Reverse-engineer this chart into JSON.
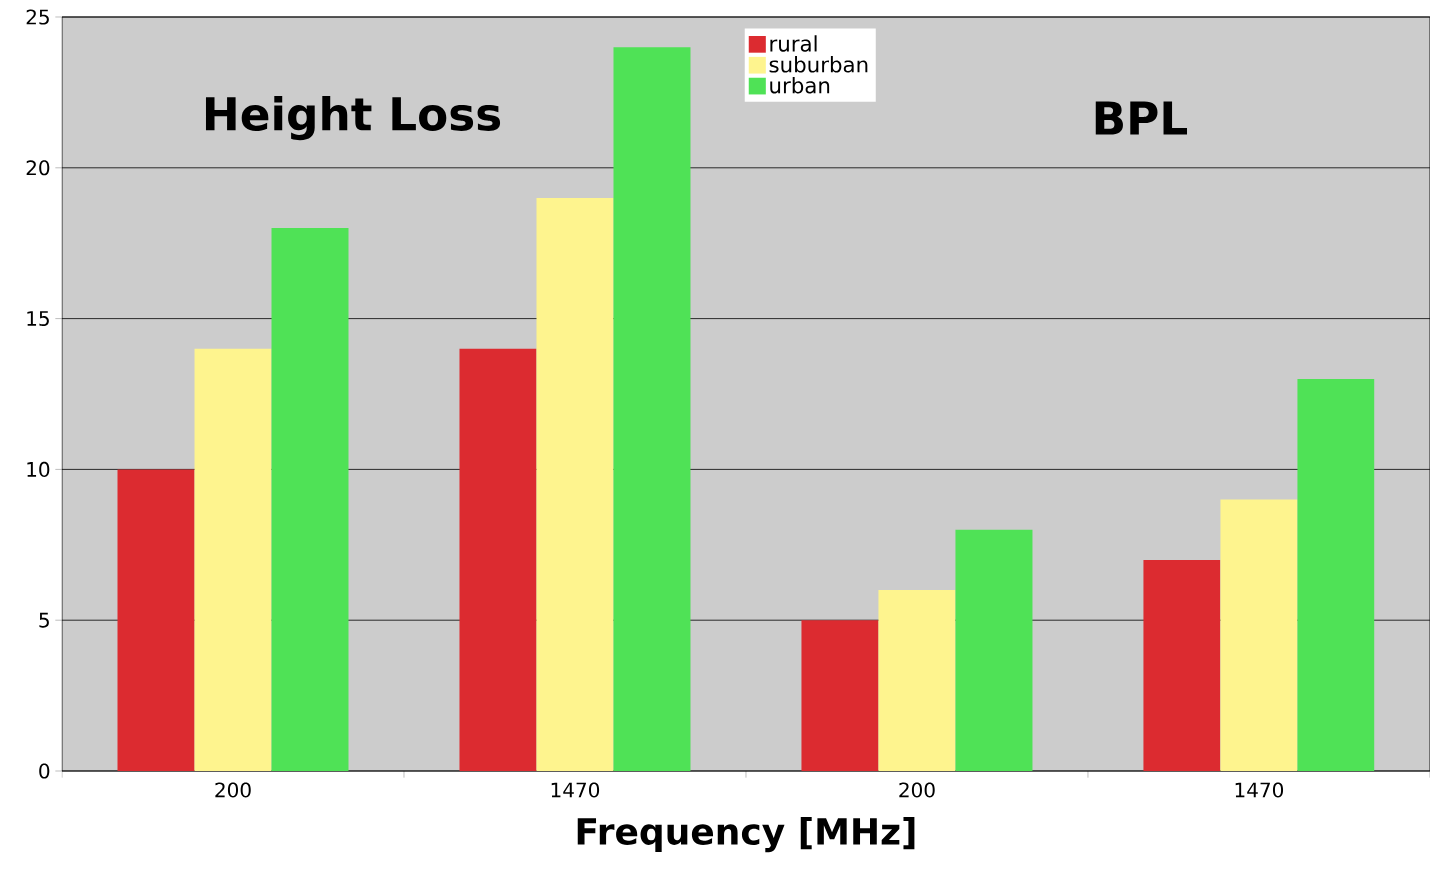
{
  "chart_data": {
    "type": "bar",
    "xlabel": "Frequency [MHz]",
    "categories": [
      "200",
      "1470",
      "200",
      "1470"
    ],
    "series": [
      {
        "name": "rural",
        "color": "#dc2b30",
        "values": [
          10,
          14,
          5,
          7
        ]
      },
      {
        "name": "suburban",
        "color": "#fef48e",
        "values": [
          14,
          19,
          6,
          9
        ]
      },
      {
        "name": "urban",
        "color": "#4fe256",
        "values": [
          18,
          24,
          8,
          13
        ]
      }
    ],
    "ylim": [
      0,
      25
    ],
    "yticks": [
      0,
      5,
      10,
      15,
      20,
      25
    ],
    "grid": "y",
    "legend": "top",
    "annotations": [
      "Height Loss",
      "BPL"
    ]
  }
}
